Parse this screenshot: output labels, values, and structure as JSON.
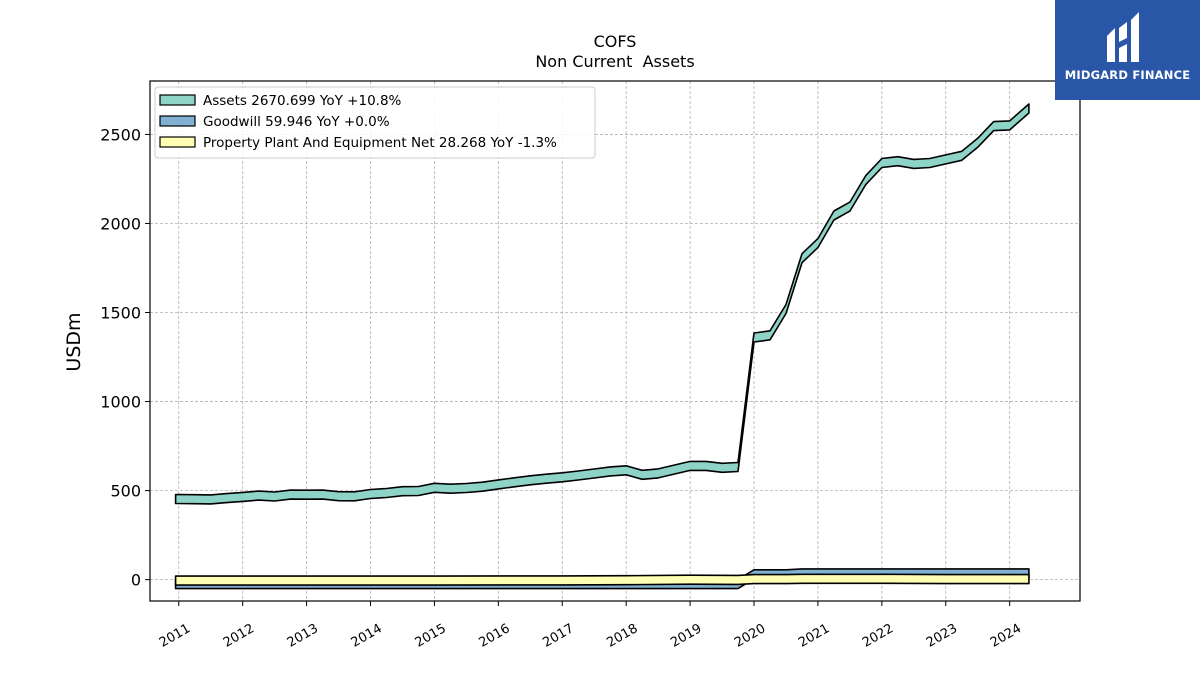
{
  "logo": {
    "brand": "MIDGARD FINANCE",
    "background": "#2a56a8",
    "mark": "midgard-logo-icon"
  },
  "chart_data": {
    "type": "area",
    "title": "COFS",
    "subtitle": "Non Current  Assets",
    "xlabel": "",
    "ylabel": "USDm",
    "xlim": [
      2010.55,
      2025.1
    ],
    "ylim": [
      -120,
      2800
    ],
    "yticks": [
      0,
      500,
      1000,
      1500,
      2000,
      2500
    ],
    "xticks": [
      2011,
      2012,
      2013,
      2014,
      2015,
      2016,
      2017,
      2018,
      2019,
      2020,
      2021,
      2022,
      2023,
      2024
    ],
    "grid": true,
    "legend_position": "top-left",
    "series": [
      {
        "name": "Assets",
        "legend_label": "Assets  2670.699 YoY +10.8%",
        "color": "#8dd3c7",
        "points": [
          [
            2010.95,
            478
          ],
          [
            2011.25,
            477
          ],
          [
            2011.5,
            476
          ],
          [
            2011.75,
            483
          ],
          [
            2012.0,
            490
          ],
          [
            2012.25,
            497
          ],
          [
            2012.5,
            492
          ],
          [
            2012.75,
            503
          ],
          [
            2013.0,
            502
          ],
          [
            2013.25,
            503
          ],
          [
            2013.5,
            494
          ],
          [
            2013.75,
            493
          ],
          [
            2014.0,
            506
          ],
          [
            2014.25,
            512
          ],
          [
            2014.5,
            522
          ],
          [
            2014.75,
            523
          ],
          [
            2015.0,
            541
          ],
          [
            2015.25,
            536
          ],
          [
            2015.5,
            540
          ],
          [
            2015.75,
            547
          ],
          [
            2016.0,
            560
          ],
          [
            2016.25,
            572
          ],
          [
            2016.5,
            583
          ],
          [
            2016.75,
            592
          ],
          [
            2017.0,
            600
          ],
          [
            2017.25,
            610
          ],
          [
            2017.5,
            621
          ],
          [
            2017.75,
            633
          ],
          [
            2018.0,
            639
          ],
          [
            2018.25,
            614
          ],
          [
            2018.5,
            622
          ],
          [
            2018.75,
            643
          ],
          [
            2019.0,
            664
          ],
          [
            2019.25,
            664
          ],
          [
            2019.5,
            653
          ],
          [
            2019.75,
            658
          ],
          [
            2020.0,
            1385
          ],
          [
            2020.25,
            1397
          ],
          [
            2020.5,
            1545
          ],
          [
            2020.75,
            1830
          ],
          [
            2021.0,
            1915
          ],
          [
            2021.25,
            2070
          ],
          [
            2021.5,
            2120
          ],
          [
            2021.75,
            2270
          ],
          [
            2022.0,
            2365
          ],
          [
            2022.25,
            2375
          ],
          [
            2022.5,
            2360
          ],
          [
            2022.75,
            2365
          ],
          [
            2023.0,
            2385
          ],
          [
            2023.25,
            2405
          ],
          [
            2023.5,
            2478
          ],
          [
            2023.75,
            2572
          ],
          [
            2024.0,
            2576
          ],
          [
            2024.3,
            2671
          ]
        ]
      },
      {
        "name": "Goodwill",
        "legend_label": "Goodwill  59.946 YoY +0.0%",
        "color": "#80b1d3",
        "points": [
          [
            2010.95,
            0
          ],
          [
            2019.75,
            0
          ],
          [
            2020.0,
            55
          ],
          [
            2020.5,
            55
          ],
          [
            2020.75,
            60
          ],
          [
            2024.3,
            60
          ]
        ]
      },
      {
        "name": "Property Plant And Equipment Net",
        "legend_label": "Property Plant And Equipment Net  28.268 YoY -1.3%",
        "color": "#ffffb3",
        "points": [
          [
            2010.95,
            20
          ],
          [
            2015.0,
            20
          ],
          [
            2017.0,
            21
          ],
          [
            2018.0,
            22
          ],
          [
            2019.0,
            25
          ],
          [
            2019.75,
            24
          ],
          [
            2020.0,
            28
          ],
          [
            2020.5,
            28
          ],
          [
            2020.75,
            30
          ],
          [
            2022.0,
            30
          ],
          [
            2023.0,
            28
          ],
          [
            2024.3,
            28
          ]
        ]
      }
    ]
  }
}
